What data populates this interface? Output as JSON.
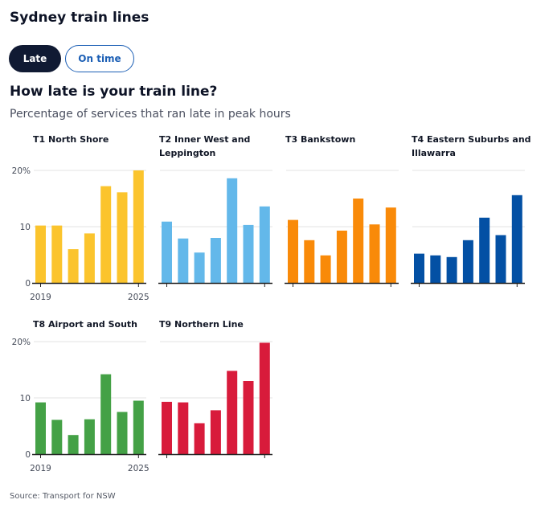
{
  "header": {
    "title": "Sydney train lines"
  },
  "toggles": {
    "late": "Late",
    "on_time": "On time"
  },
  "heading": "How late is your train line?",
  "subtitle": "Percentage of services that ran late in peak hours",
  "source": "Source: Transport for NSW",
  "chart_data": [
    {
      "type": "bar",
      "title_lines": [
        "T1 North Shore"
      ],
      "color": "#fbc42d",
      "categories": [
        "2019",
        "2020",
        "2021",
        "2022",
        "2023",
        "2024",
        "2025"
      ],
      "values": [
        10.2,
        10.2,
        6.0,
        8.8,
        17.2,
        16.1,
        20.0
      ],
      "ylim": [
        0,
        20
      ],
      "yticks": [
        "20%",
        "10",
        "0"
      ],
      "xticks": [
        "2019",
        "2025"
      ]
    },
    {
      "type": "bar",
      "title_lines": [
        "T2 Inner West and",
        "Leppington"
      ],
      "color": "#63b8ea",
      "categories": [
        "2019",
        "2020",
        "2021",
        "2022",
        "2023",
        "2024",
        "2025"
      ],
      "values": [
        10.9,
        7.9,
        5.4,
        8.0,
        18.6,
        10.3,
        13.6
      ],
      "ylim": [
        0,
        20
      ]
    },
    {
      "type": "bar",
      "title_lines": [
        "T3 Bankstown"
      ],
      "color": "#f98a09",
      "categories": [
        "2019",
        "2020",
        "2021",
        "2022",
        "2023",
        "2024",
        "2025"
      ],
      "values": [
        11.2,
        7.6,
        4.9,
        9.3,
        15.0,
        10.4,
        13.4
      ],
      "ylim": [
        0,
        20
      ]
    },
    {
      "type": "bar",
      "title_lines": [
        "T4 Eastern Suburbs and",
        "Illawarra"
      ],
      "color": "#0350a4",
      "categories": [
        "2019",
        "2020",
        "2021",
        "2022",
        "2023",
        "2024",
        "2025"
      ],
      "values": [
        5.2,
        4.9,
        4.6,
        7.6,
        11.6,
        8.5,
        15.6
      ],
      "ylim": [
        0,
        20
      ]
    },
    {
      "type": "bar",
      "title_lines": [
        "T8 Airport and South"
      ],
      "color": "#44a146",
      "categories": [
        "2019",
        "2020",
        "2021",
        "2022",
        "2023",
        "2024",
        "2025"
      ],
      "values": [
        9.2,
        6.1,
        3.4,
        6.2,
        14.2,
        7.5,
        9.5
      ],
      "ylim": [
        0,
        20
      ],
      "yticks": [
        "20%",
        "10",
        "0"
      ],
      "xticks": [
        "2019",
        "2025"
      ]
    },
    {
      "type": "bar",
      "title_lines": [
        "T9 Northern Line"
      ],
      "color": "#d81b3b",
      "categories": [
        "2019",
        "2020",
        "2021",
        "2022",
        "2023",
        "2024",
        "2025"
      ],
      "values": [
        9.3,
        9.2,
        5.5,
        7.8,
        14.8,
        13.0,
        19.8
      ],
      "ylim": [
        0,
        20
      ]
    }
  ]
}
